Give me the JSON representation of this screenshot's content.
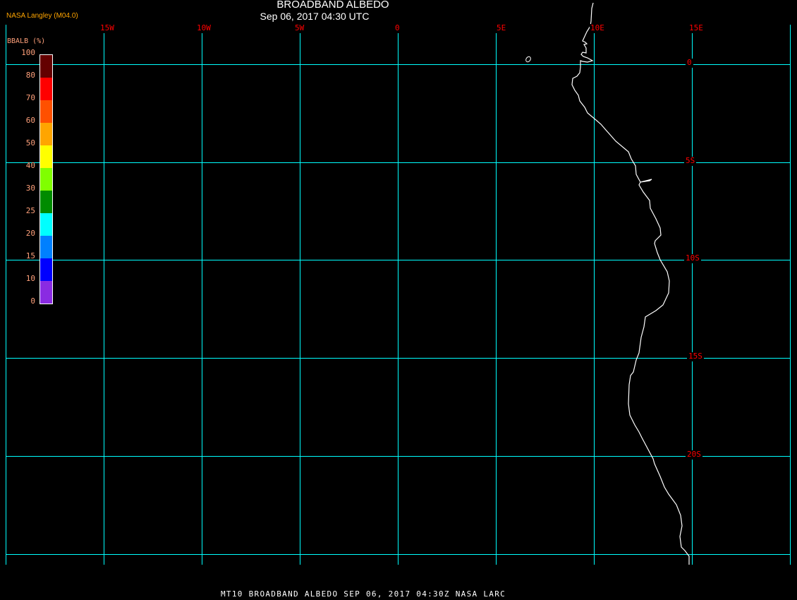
{
  "header": {
    "title": "BROADBAND ALBEDO",
    "subtitle": "Sep 06, 2017 04:30 UTC",
    "credit": "NASA Langley (M04.0)"
  },
  "footer": "MT10  BROADBAND ALBEDO   SEP 06, 2017 04:30Z   NASA LARC",
  "colors": {
    "grid": "#00ffff",
    "labels": "#ff0000",
    "coastline": "#ffffff",
    "background": "#000000"
  },
  "longitude_labels": [
    "15W",
    "10W",
    "5W",
    "0",
    "5E",
    "10E",
    "15E"
  ],
  "latitude_labels": [
    "0",
    "5S",
    "10S",
    "15S",
    "20S"
  ],
  "colorbar": {
    "title": "BBALB (%)",
    "ticks": [
      "0",
      "10",
      "15",
      "20",
      "25",
      "30",
      "40",
      "50",
      "60",
      "70",
      "80",
      "100"
    ],
    "colors": [
      "#8a2be2",
      "#0000ff",
      "#0080ff",
      "#00ffff",
      "#008b00",
      "#80ff00",
      "#ffff00",
      "#ffa500",
      "#ff5000",
      "#ff0000",
      "#640000"
    ]
  }
}
